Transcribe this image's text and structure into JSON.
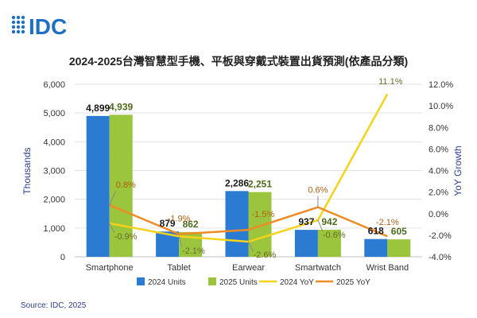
{
  "logo_text": "IDC",
  "source": "Source: IDC, 2025",
  "chart_data": {
    "type": "bar",
    "title": "2024-2025台灣智慧型手機、平板與穿戴式裝置出貨預測(依產品分類)",
    "categories": [
      "Smartphone",
      "Tablet",
      "Earwear",
      "Smartwatch",
      "Wrist Band"
    ],
    "ylabel": "Thousands",
    "y2label": "YoY Growth",
    "ylim": [
      0,
      6000
    ],
    "y2lim": [
      -4.0,
      12.0
    ],
    "yticks": [
      "0",
      "1,000",
      "2,000",
      "3,000",
      "4,000",
      "5,000",
      "6,000"
    ],
    "y2ticks": [
      "-4.0%",
      "-2.0%",
      "0.0%",
      "2.0%",
      "4.0%",
      "6.0%",
      "8.0%",
      "10.0%",
      "12.0%"
    ],
    "grid": true,
    "legend_position": "bottom",
    "series": [
      {
        "name": "2024 Units",
        "kind": "bar",
        "color": "#2a7bd1",
        "values": [
          4899,
          879,
          2286,
          937,
          618
        ],
        "labels": [
          "4,899",
          "879",
          "2,286",
          "937",
          "618"
        ]
      },
      {
        "name": "2025 Units",
        "kind": "bar",
        "color": "#9bc53d",
        "values": [
          4939,
          862,
          2251,
          942,
          605
        ],
        "labels": [
          "4,939",
          "862",
          "2,251",
          "942",
          "605"
        ]
      },
      {
        "name": "2024 YoY",
        "kind": "line",
        "axis": "right",
        "color": "#f5d21b",
        "values": [
          -0.9,
          -2.1,
          -2.6,
          -0.6,
          11.1
        ],
        "labels": [
          "-0.9%",
          "-2.1%",
          "-2.6%",
          "-0.6%",
          "11.1%"
        ]
      },
      {
        "name": "2025 YoY",
        "kind": "line",
        "axis": "right",
        "color": "#f08a24",
        "values": [
          0.8,
          -1.9,
          -1.5,
          0.6,
          -2.1
        ],
        "labels": [
          "0.8%",
          "-1.9%",
          "-1.5%",
          "0.6%",
          "-2.1%"
        ]
      }
    ]
  }
}
